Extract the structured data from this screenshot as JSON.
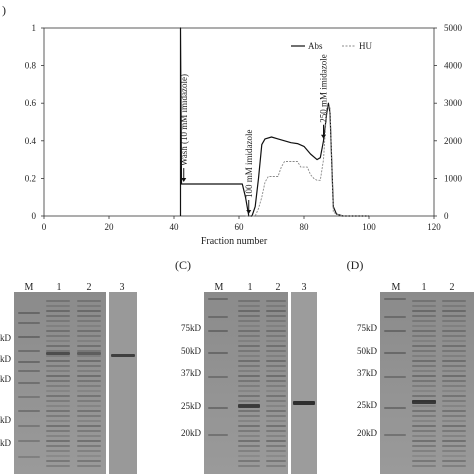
{
  "chart_data": {
    "type": "line",
    "panel_label": ")",
    "xlabel": "Fraction number",
    "xlim": [
      0,
      120
    ],
    "x_ticks": [
      "0",
      "20",
      "40",
      "60",
      "80",
      "100",
      "120"
    ],
    "ylim_left": [
      0,
      1
    ],
    "y_ticks_left": [
      "0",
      "0.2",
      "0.4",
      "0.6",
      "0.8",
      "1"
    ],
    "ylim_right": [
      0,
      5000
    ],
    "y_ticks_right": [
      "0",
      "1000",
      "2000",
      "3000",
      "4000",
      "5000"
    ],
    "legend": {
      "position": "top-right",
      "entries": [
        "Abs",
        "HU"
      ]
    },
    "series": [
      {
        "name": "Abs",
        "axis": "left",
        "color": "#111111",
        "style": "solid",
        "x": [
          42,
          42,
          42.3,
          43,
          61,
          62,
          63,
          64,
          65,
          66,
          67,
          68,
          70,
          72,
          74,
          76,
          78,
          80,
          82,
          84,
          85,
          86,
          87,
          87.5,
          88,
          89,
          90,
          92,
          100
        ],
        "y": [
          0,
          1.0,
          0.17,
          0.17,
          0.17,
          0.1,
          0.0,
          0.0,
          0.05,
          0.2,
          0.38,
          0.41,
          0.42,
          0.41,
          0.4,
          0.39,
          0.385,
          0.37,
          0.33,
          0.3,
          0.31,
          0.4,
          0.55,
          0.6,
          0.55,
          0.05,
          0.01,
          0.0,
          0.0
        ]
      },
      {
        "name": "HU",
        "axis": "right",
        "color": "#888888",
        "style": "dashed",
        "x": [
          62,
          65,
          66,
          67,
          68,
          69,
          70,
          72,
          73,
          74,
          78,
          79,
          80,
          81,
          82,
          83,
          84,
          85,
          86,
          87,
          88,
          89,
          90,
          92,
          100
        ],
        "y": [
          0,
          0,
          200,
          500,
          900,
          1050,
          1050,
          1050,
          1300,
          1450,
          1450,
          1300,
          1300,
          1300,
          1100,
          1000,
          950,
          950,
          1500,
          2900,
          2900,
          100,
          50,
          0,
          0
        ]
      }
    ],
    "annotations": [
      {
        "text": "Wash (10 mM imidazole)",
        "x": 43
      },
      {
        "text": "100 mM imidazole",
        "x": 63
      },
      {
        "text": "250 mM imidazole",
        "x": 86
      }
    ]
  },
  "gels": {
    "panel_c_label": "(C)",
    "panel_d_label": "(D)",
    "left": {
      "lanes": [
        "M",
        "1",
        "2",
        "3"
      ],
      "markers": [
        "kD",
        "kD",
        "kD",
        "kD",
        "kD"
      ]
    },
    "middle": {
      "lanes": [
        "M",
        "1",
        "2",
        "3"
      ],
      "markers": [
        "75kD",
        "50kD",
        "37kD",
        "25kD",
        "20kD"
      ]
    },
    "right": {
      "lanes": [
        "M",
        "1",
        "2"
      ],
      "markers": [
        "75kD",
        "50kD",
        "37kD",
        "25kD",
        "20kD"
      ]
    }
  }
}
